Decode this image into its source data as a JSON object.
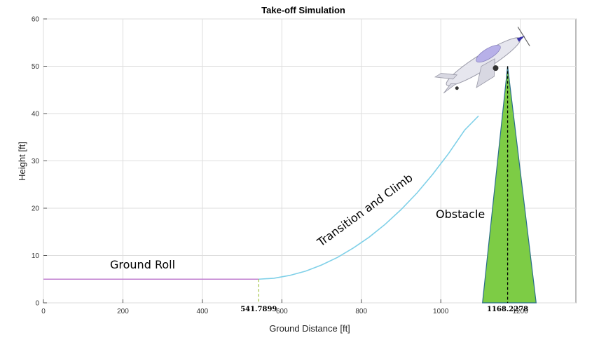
{
  "chart_data": {
    "type": "line",
    "title": "Take-off Simulation",
    "xlabel": "Ground Distance [ft]",
    "ylabel": "Height [ft]",
    "xlim": [
      0,
      1340
    ],
    "ylim": [
      0,
      60
    ],
    "xticks": [
      0,
      200,
      400,
      600,
      800,
      1000,
      1200
    ],
    "yticks": [
      0,
      10,
      20,
      30,
      40,
      50,
      60
    ],
    "grid": true,
    "series": [
      {
        "name": "Ground Roll",
        "color": "#c07fd0",
        "x": [
          0,
          541.7899
        ],
        "y": [
          5,
          5
        ]
      },
      {
        "name": "Transition and Climb",
        "color": "#7fd0e8",
        "x": [
          541.7899,
          580,
          620,
          660,
          700,
          740,
          780,
          820,
          860,
          900,
          940,
          980,
          1020,
          1060,
          1095
        ],
        "y": [
          5,
          5.2,
          5.8,
          6.7,
          8.0,
          9.6,
          11.6,
          13.9,
          16.6,
          19.7,
          23.2,
          27.2,
          31.6,
          36.5,
          39.5
        ]
      }
    ],
    "obstacle": {
      "label": "Obstacle",
      "color": "#7dcc45",
      "base_x": [
        1105,
        1240
      ],
      "peak": [
        1168.2278,
        50
      ]
    },
    "markers": [
      {
        "x": 541.7899,
        "label": "541.7899",
        "color": "#a8c850"
      },
      {
        "x": 1168.2278,
        "label": "1168.2278",
        "color": "#000000"
      }
    ],
    "annotations": [
      {
        "text": "Ground Roll"
      },
      {
        "text": "Transition and Climb"
      },
      {
        "text": "Obstacle"
      }
    ]
  }
}
